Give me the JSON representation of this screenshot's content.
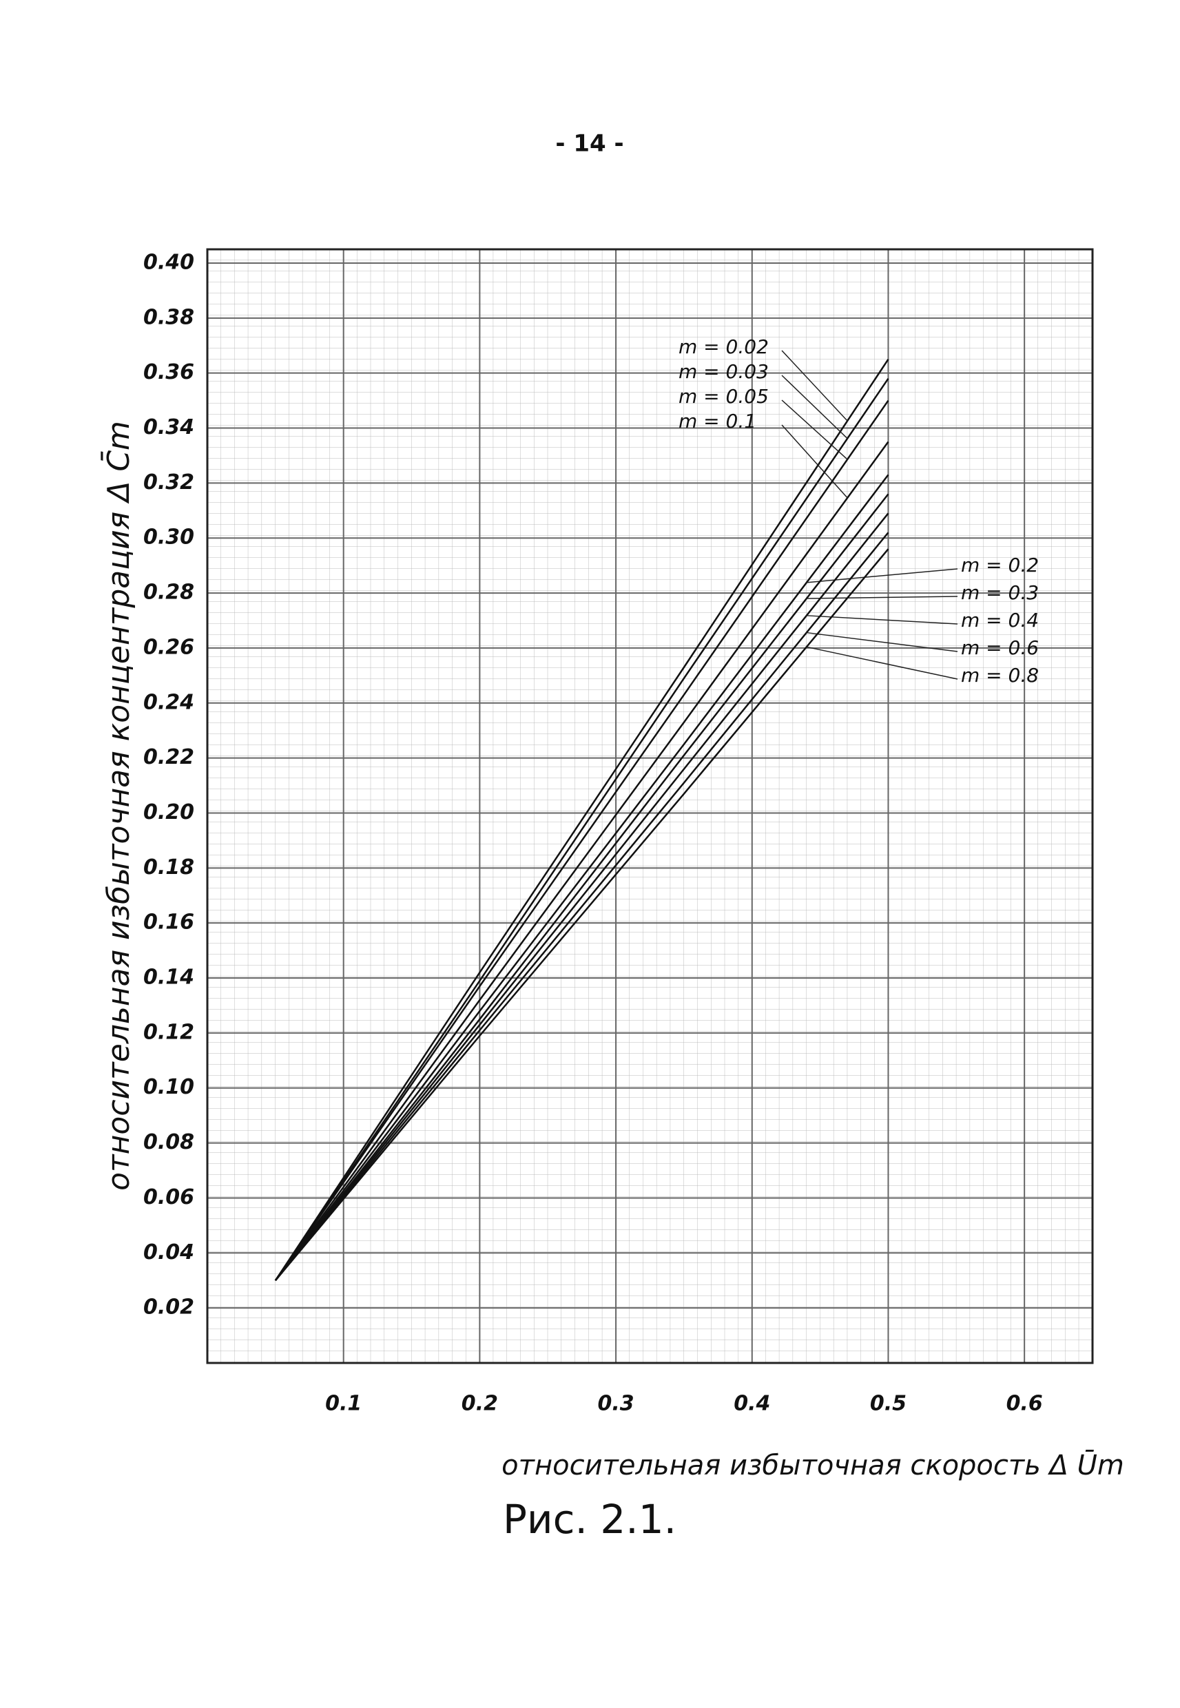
{
  "page_number": "- 14 -",
  "chart_data": {
    "type": "line",
    "caption": "Рис. 2.1.",
    "x_label": "относительная избыточная скорость Δ Ūm",
    "y_label": "относительная избыточная концентрация Δ C̄m",
    "x": [
      0.05,
      0.2,
      0.35,
      0.5
    ],
    "series": [
      {
        "name": "m = 0.02",
        "color": "#111111",
        "values": [
          0.03,
          0.142,
          0.253,
          0.365
        ]
      },
      {
        "name": "m = 0.03",
        "color": "#111111",
        "values": [
          0.03,
          0.139,
          0.249,
          0.358
        ]
      },
      {
        "name": "m = 0.05",
        "color": "#111111",
        "values": [
          0.03,
          0.137,
          0.243,
          0.35
        ]
      },
      {
        "name": "m = 0.1",
        "color": "#111111",
        "values": [
          0.03,
          0.132,
          0.233,
          0.335
        ]
      },
      {
        "name": "m = 0.2",
        "color": "#111111",
        "values": [
          0.03,
          0.128,
          0.225,
          0.323
        ]
      },
      {
        "name": "m = 0.3",
        "color": "#111111",
        "values": [
          0.03,
          0.125,
          0.221,
          0.316
        ]
      },
      {
        "name": "m = 0.4",
        "color": "#111111",
        "values": [
          0.03,
          0.123,
          0.216,
          0.309
        ]
      },
      {
        "name": "m = 0.6",
        "color": "#111111",
        "values": [
          0.03,
          0.121,
          0.211,
          0.302
        ]
      },
      {
        "name": "m = 0.8",
        "color": "#111111",
        "values": [
          0.03,
          0.119,
          0.207,
          0.296
        ]
      }
    ],
    "xlim": [
      0,
      0.65
    ],
    "ylim": [
      0,
      0.405
    ],
    "xticks": [
      0.1,
      0.2,
      0.3,
      0.4,
      0.5,
      0.6
    ],
    "yticks": [
      0.02,
      0.04,
      0.06,
      0.08,
      {
        "value": 0.1,
        "label": "0.10"
      },
      0.12,
      0.14,
      0.16,
      0.18,
      {
        "value": 0.2,
        "label": "0.20"
      },
      0.22,
      0.24,
      0.26,
      0.28,
      {
        "value": 0.3,
        "label": "0.30"
      },
      0.32,
      0.34,
      0.36,
      0.38,
      {
        "value": 0.4,
        "label": "0.40"
      }
    ],
    "grid": true
  }
}
